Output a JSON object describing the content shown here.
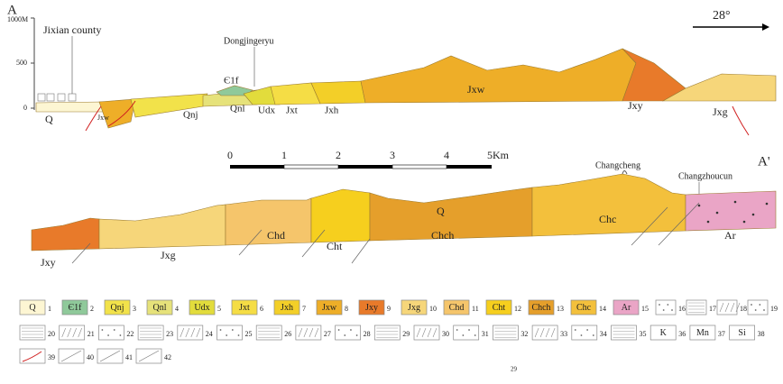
{
  "section_a": {
    "start_label": "A",
    "elevation_labels": [
      "1000M",
      "500",
      "0"
    ],
    "places": [
      "Jixian county",
      "Dongjingeryu"
    ],
    "direction": "28°",
    "units": [
      "Є1f",
      "Q",
      "Jxw",
      "Qnj",
      "Qnl",
      "Udx",
      "Jxt",
      "Jxh",
      "Jxw",
      "Jxy",
      "Jxg"
    ]
  },
  "scale_bar": {
    "ticks": [
      "0",
      "1",
      "2",
      "3",
      "4",
      "5Km"
    ]
  },
  "section_b": {
    "end_label": "A'",
    "places": [
      "Changcheng",
      "Changzhoucun"
    ],
    "units": [
      "Jxy",
      "Jxg",
      "Chd",
      "Cht",
      "Q",
      "Chch",
      "Chc",
      "Ar"
    ]
  },
  "legend": [
    {
      "number": "1",
      "label": "Q"
    },
    {
      "number": "2",
      "label": "Є1f"
    },
    {
      "number": "3",
      "label": "Qnj"
    },
    {
      "number": "4",
      "label": "Qnl"
    },
    {
      "number": "5",
      "label": "Udx"
    },
    {
      "number": "6",
      "label": "Jxt"
    },
    {
      "number": "7",
      "label": "Jxh"
    },
    {
      "number": "8",
      "label": "Jxw"
    },
    {
      "number": "9",
      "label": "Jxy"
    },
    {
      "number": "10",
      "label": "Jxg"
    },
    {
      "number": "11",
      "label": "Chd"
    },
    {
      "number": "12",
      "label": "Cht"
    },
    {
      "number": "13",
      "label": "Chch"
    },
    {
      "number": "14",
      "label": "Chc"
    },
    {
      "number": "15",
      "label": "Ar"
    },
    {
      "number": "16"
    },
    {
      "number": "17"
    },
    {
      "number": "18"
    },
    {
      "number": "19"
    },
    {
      "number": "20"
    },
    {
      "number": "21"
    },
    {
      "number": "22"
    },
    {
      "number": "23"
    },
    {
      "number": "24"
    },
    {
      "number": "25"
    },
    {
      "number": "26"
    },
    {
      "number": "27"
    },
    {
      "number": "28"
    },
    {
      "number": "29"
    },
    {
      "number": "30"
    },
    {
      "number": "31"
    },
    {
      "number": "32"
    },
    {
      "number": "33"
    },
    {
      "number": "34"
    },
    {
      "number": "35"
    },
    {
      "number": "36",
      "label": "K"
    },
    {
      "number": "37",
      "label": "Mn"
    },
    {
      "number": "38",
      "label": "Si"
    },
    {
      "number": "39"
    },
    {
      "number": "40"
    },
    {
      "number": "41"
    },
    {
      "number": "42"
    }
  ],
  "page_number": "29"
}
